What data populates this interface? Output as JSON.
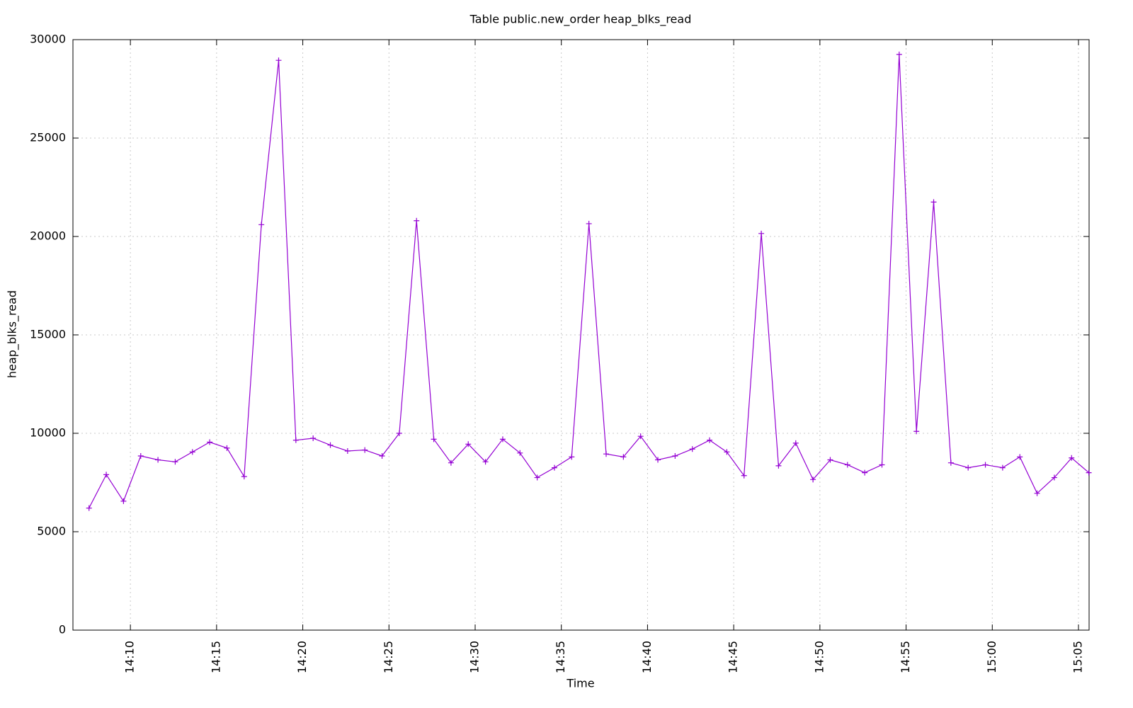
{
  "chart_data": {
    "type": "line",
    "title": "Table public.new_order heap_blks_read",
    "x_label": "Time",
    "y_label": "heap_blks_read",
    "x": [
      "14:07:36",
      "14:08:36",
      "14:09:36",
      "14:10:36",
      "14:11:36",
      "14:12:36",
      "14:13:36",
      "14:14:36",
      "14:15:36",
      "14:16:36",
      "14:17:36",
      "14:18:36",
      "14:19:36",
      "14:20:36",
      "14:21:36",
      "14:22:36",
      "14:23:36",
      "14:24:36",
      "14:25:36",
      "14:26:36",
      "14:27:36",
      "14:28:36",
      "14:29:36",
      "14:30:36",
      "14:31:36",
      "14:32:36",
      "14:33:36",
      "14:34:36",
      "14:35:36",
      "14:36:36",
      "14:37:36",
      "14:38:36",
      "14:39:36",
      "14:40:36",
      "14:41:36",
      "14:42:36",
      "14:43:36",
      "14:44:36",
      "14:45:36",
      "14:46:36",
      "14:47:36",
      "14:48:36",
      "14:49:36",
      "14:50:36",
      "14:51:36",
      "14:52:36",
      "14:53:36",
      "14:54:36",
      "14:55:36",
      "14:56:36",
      "14:57:36",
      "14:58:36",
      "14:59:36",
      "15:00:36",
      "15:01:36",
      "15:02:36",
      "15:03:36",
      "15:04:36",
      "15:05:36"
    ],
    "values": [
      6200,
      7900,
      6550,
      8850,
      8650,
      8550,
      9050,
      9550,
      9250,
      7800,
      20600,
      28950,
      9650,
      9750,
      9400,
      9100,
      9150,
      8850,
      10000,
      20800,
      9700,
      8500,
      9450,
      8550,
      9700,
      9000,
      7750,
      8250,
      8800,
      20650,
      8950,
      8800,
      9850,
      8650,
      8850,
      9200,
      9650,
      9050,
      7850,
      20150,
      8350,
      9500,
      7650,
      8650,
      8400,
      8000,
      8400,
      29250,
      10100,
      21750,
      8500,
      8250,
      8400,
      8250,
      8800,
      6950,
      7750,
      8750,
      8000
    ],
    "color": "#9400d3",
    "xlim": [
      "14:06:40",
      "15:05:37"
    ],
    "xticks": [
      "14:10",
      "14:15",
      "14:20",
      "14:25",
      "14:30",
      "14:35",
      "14:40",
      "14:45",
      "14:50",
      "14:55",
      "15:00",
      "15:05"
    ],
    "ylim": [
      0,
      30000
    ],
    "yticks": [
      0,
      5000,
      10000,
      15000,
      20000,
      25000,
      30000
    ],
    "grid": true
  }
}
